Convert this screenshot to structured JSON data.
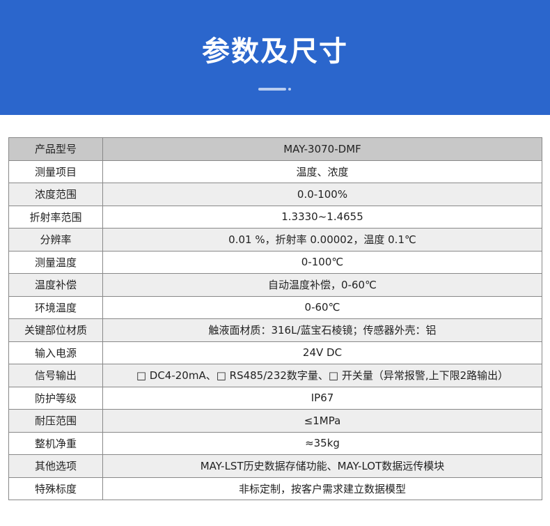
{
  "header": {
    "title": "参数及尺寸",
    "color": "#2B66CC"
  },
  "table": {
    "rows": [
      {
        "label": "产品型号",
        "value": "MAY-3070-DMF"
      },
      {
        "label": "测量项目",
        "value": "温度、浓度"
      },
      {
        "label": "浓度范围",
        "value": "0.0-100%"
      },
      {
        "label": "折射率范围",
        "value": "1.3330~1.4655"
      },
      {
        "label": "分辨率",
        "value": "0.01 %，折射率 0.00002，温度 0.1℃"
      },
      {
        "label": "测量温度",
        "value": "0-100℃"
      },
      {
        "label": "温度补偿",
        "value": "自动温度补偿，0-60℃"
      },
      {
        "label": "环境温度",
        "value": "0-60℃"
      },
      {
        "label": "关键部位材质",
        "value": "触液面材质：316L/蓝宝石棱镜；传感器外壳：铝"
      },
      {
        "label": "输入电源",
        "value": "24V DC"
      },
      {
        "label": "信号输出",
        "value": "□ DC4-20mA、□ RS485/232数字量、□ 开关量（异常报警,上下限2路输出）"
      },
      {
        "label": "防护等级",
        "value": "IP67"
      },
      {
        "label": "耐压范围",
        "value": "≤1MPa"
      },
      {
        "label": "整机净重",
        "value": "≈35kg"
      },
      {
        "label": "其他选项",
        "value": "MAY-LST历史数据存储功能、MAY-LOT数据远传模块"
      },
      {
        "label": "特殊标度",
        "value": "非标定制，按客户需求建立数据模型"
      }
    ]
  }
}
